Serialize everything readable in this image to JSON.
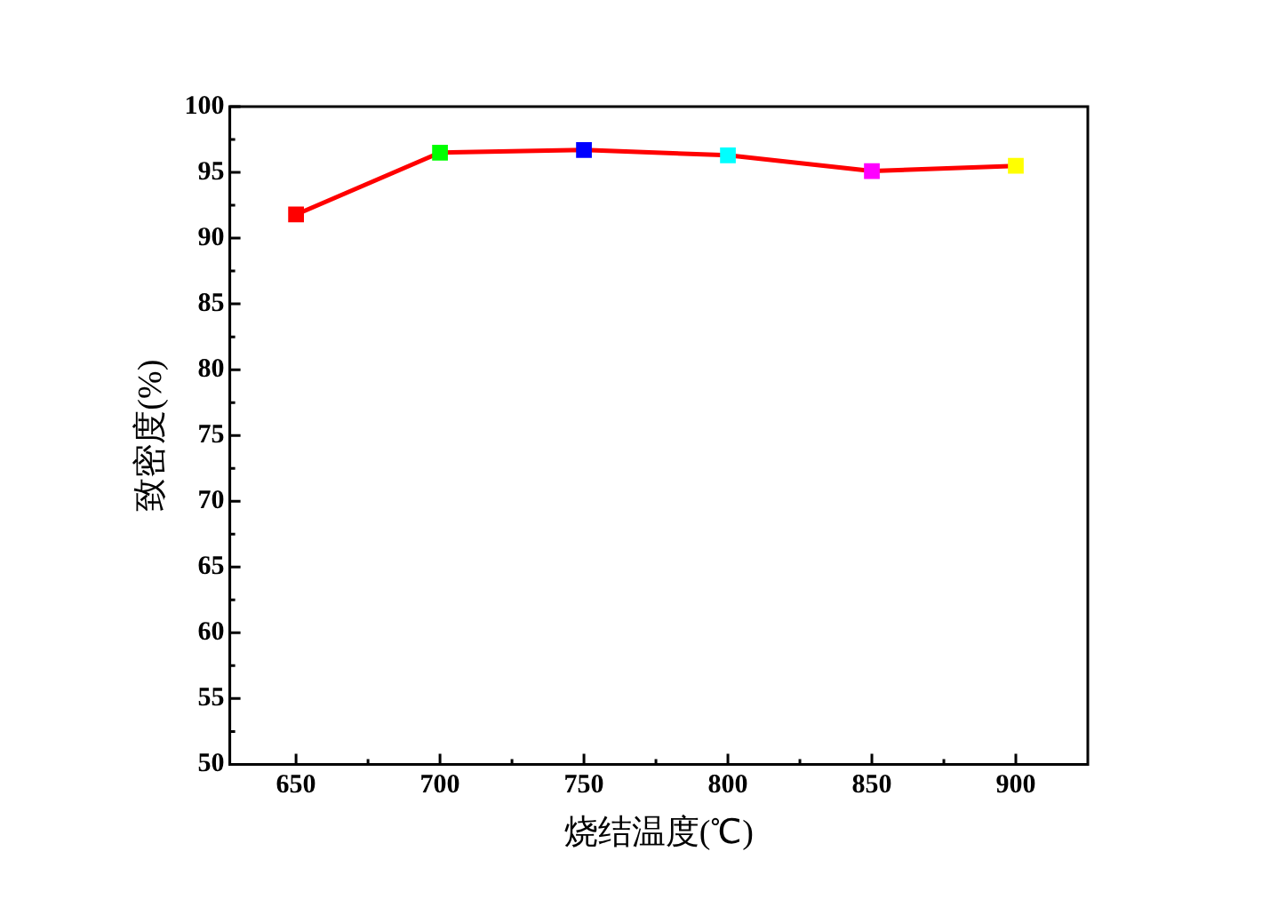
{
  "chart_data": {
    "type": "line",
    "xlabel": "烧结温度(℃)",
    "ylabel": "致密度(%)",
    "x": [
      650,
      700,
      750,
      800,
      850,
      900
    ],
    "series": [
      {
        "color": "#ff0000",
        "colors": [
          "#ff0000",
          "#00ff00",
          "#0000ff",
          "#00ffff",
          "#ff00ff",
          "#ffff00"
        ],
        "values": [
          91.8,
          96.5,
          96.7,
          96.3,
          95.1,
          95.5
        ]
      }
    ],
    "xlim": [
      627,
      925
    ],
    "xticks": [
      650,
      {
        "value": 675,
        "label": null
      },
      700,
      {
        "value": 725,
        "label": null
      },
      750,
      {
        "value": 775,
        "label": null
      },
      800,
      {
        "value": 825,
        "label": null
      },
      850,
      {
        "value": 875,
        "label": null
      },
      900
    ],
    "ylim": [
      50,
      100
    ],
    "yticks": [
      50,
      {
        "value": 52.5,
        "label": null
      },
      55,
      {
        "value": 57.5,
        "label": null
      },
      60,
      {
        "value": 62.5,
        "label": null
      },
      65,
      {
        "value": 67.5,
        "label": null
      },
      70,
      {
        "value": 72.5,
        "label": null
      },
      75,
      {
        "value": 77.5,
        "label": null
      },
      80,
      {
        "value": 82.5,
        "label": null
      },
      85,
      {
        "value": 87.5,
        "label": null
      },
      90,
      {
        "value": 92.5,
        "label": null
      },
      95,
      {
        "value": 97.5,
        "label": null
      },
      100
    ],
    "marker": "square",
    "line_style": "solid",
    "grid": false,
    "legend": false
  }
}
